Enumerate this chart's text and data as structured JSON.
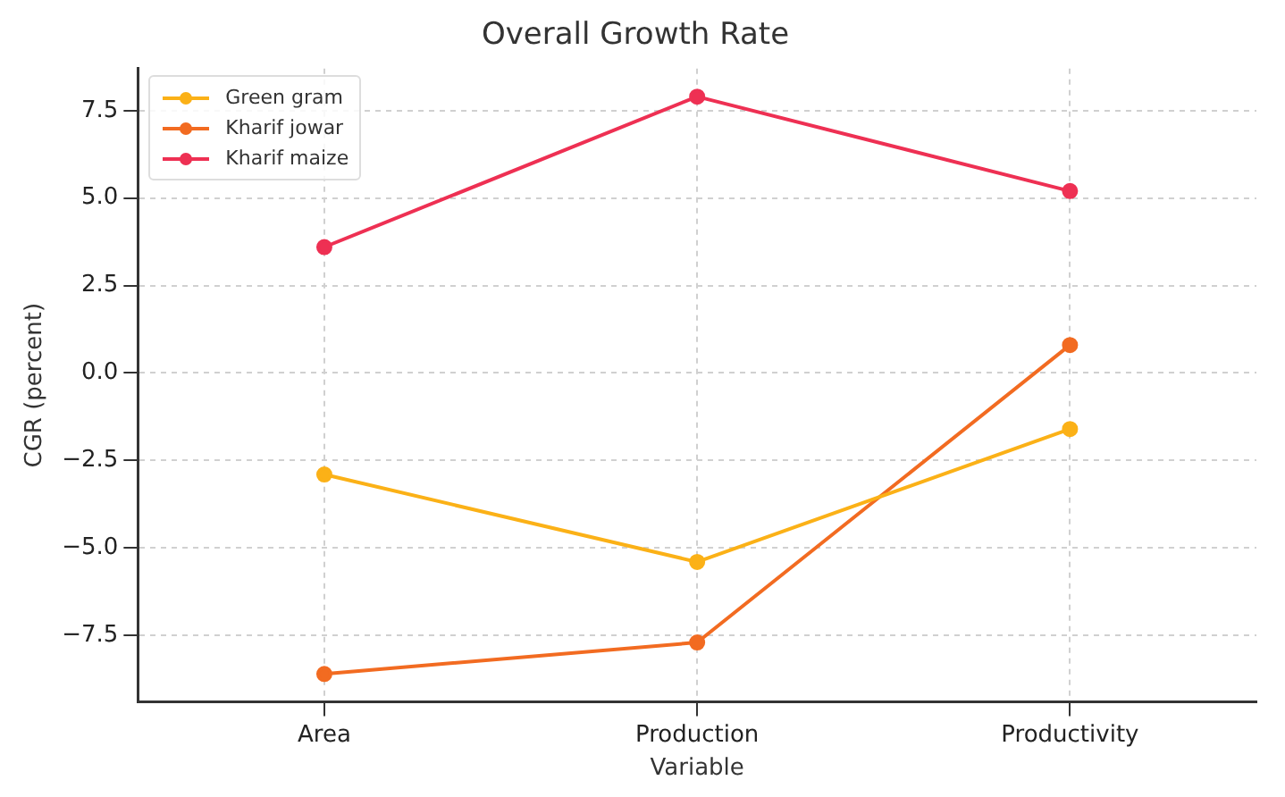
{
  "chart_data": {
    "type": "line",
    "title": "Overall Growth Rate",
    "xlabel": "Variable",
    "ylabel": "CGR (percent)",
    "categories": [
      "Area",
      "Production",
      "Productivity"
    ],
    "series": [
      {
        "name": "Green gram",
        "color": "#fbb117",
        "values": [
          -2.9,
          -5.4,
          -1.6
        ]
      },
      {
        "name": "Kharif jowar",
        "color": "#f26b21",
        "values": [
          -8.6,
          -7.7,
          0.8
        ]
      },
      {
        "name": "Kharif maize",
        "color": "#ee3053",
        "values": [
          3.6,
          7.9,
          5.2
        ]
      }
    ],
    "ylim": [
      -9.4,
      8.7
    ],
    "yticks": [
      {
        "value": -7.5,
        "label": "−7.5"
      },
      {
        "value": -5,
        "label": "−5.0"
      },
      {
        "value": -2.5,
        "label": "−2.5"
      },
      {
        "value": 0,
        "label": "0.0"
      },
      {
        "value": 2.5,
        "label": "2.5"
      },
      {
        "value": 5,
        "label": "5.0"
      },
      {
        "value": 7.5,
        "label": "7.5"
      }
    ],
    "grid": true,
    "legend": "top left",
    "marker": "circle",
    "line_style": "solid"
  }
}
